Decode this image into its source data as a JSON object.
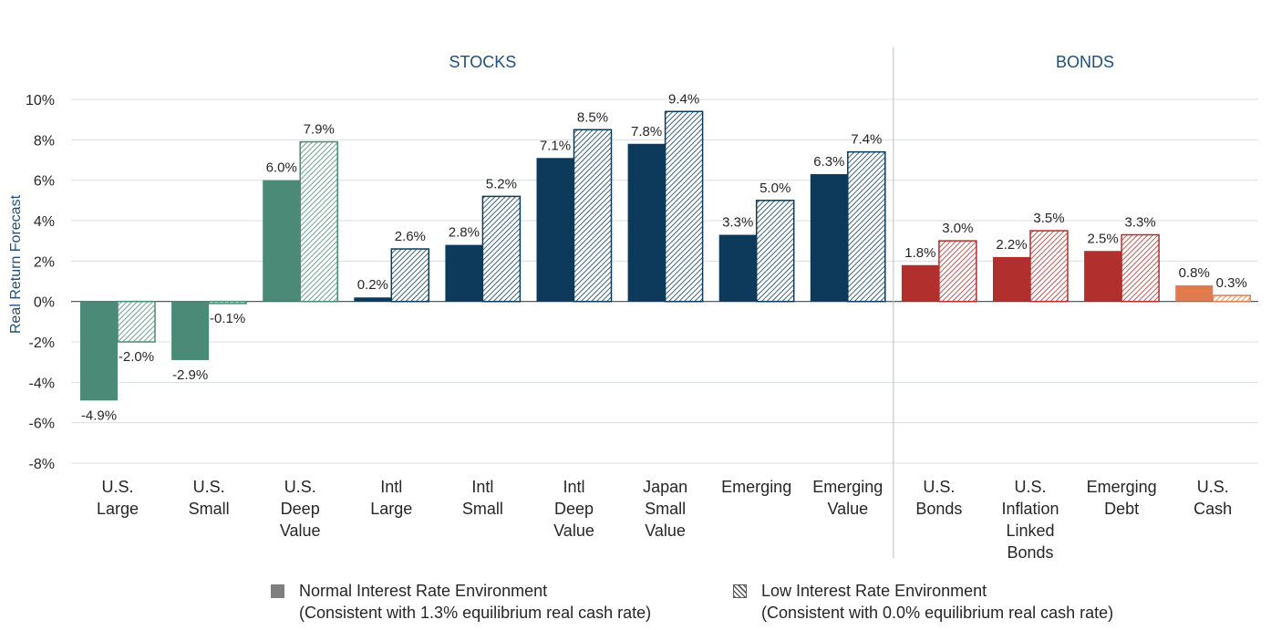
{
  "chart_data": {
    "type": "bar",
    "ylabel": "Real Return Forecast",
    "ylim": [
      -8,
      10
    ],
    "yticks": [
      -8,
      -6,
      -4,
      -2,
      0,
      2,
      4,
      6,
      8,
      10
    ],
    "ytick_labels": [
      "-8%",
      "-6%",
      "-4%",
      "-2%",
      "0%",
      "2%",
      "4%",
      "6%",
      "8%",
      "10%"
    ],
    "grid": true,
    "groups": [
      {
        "label": "STOCKS",
        "categories": [
          0,
          1,
          2,
          3,
          4,
          5,
          6,
          7,
          8
        ]
      },
      {
        "label": "BONDS",
        "categories": [
          9,
          10,
          11,
          12
        ]
      }
    ],
    "categories": [
      {
        "lines": [
          "U.S.",
          "Large"
        ],
        "color": "#4a8a76",
        "normal": -4.9,
        "low": -2.0,
        "normal_label": "-4.9%",
        "low_label": "-2.0%"
      },
      {
        "lines": [
          "U.S.",
          "Small"
        ],
        "color": "#4a8a76",
        "normal": -2.9,
        "low": -0.1,
        "normal_label": "-2.9%",
        "low_label": "-0.1%"
      },
      {
        "lines": [
          "U.S.",
          "Deep",
          "Value"
        ],
        "color": "#4a8a76",
        "normal": 6.0,
        "low": 7.9,
        "normal_label": "6.0%",
        "low_label": "7.9%"
      },
      {
        "lines": [
          "Intl",
          "Large"
        ],
        "color": "#0d3a5a",
        "normal": 0.2,
        "low": 2.6,
        "normal_label": "0.2%",
        "low_label": "2.6%"
      },
      {
        "lines": [
          "Intl",
          "Small"
        ],
        "color": "#0d3a5a",
        "normal": 2.8,
        "low": 5.2,
        "normal_label": "2.8%",
        "low_label": "5.2%"
      },
      {
        "lines": [
          "Intl",
          "Deep",
          "Value"
        ],
        "color": "#0d3a5a",
        "normal": 7.1,
        "low": 8.5,
        "normal_label": "7.1%",
        "low_label": "8.5%"
      },
      {
        "lines": [
          "Japan",
          "Small",
          "Value"
        ],
        "color": "#0d3a5a",
        "normal": 7.8,
        "low": 9.4,
        "normal_label": "7.8%",
        "low_label": "9.4%"
      },
      {
        "lines": [
          "Emerging"
        ],
        "color": "#0d3a5a",
        "normal": 3.3,
        "low": 5.0,
        "normal_label": "3.3%",
        "low_label": "5.0%"
      },
      {
        "lines": [
          "Emerging",
          "Value"
        ],
        "color": "#0d3a5a",
        "normal": 6.3,
        "low": 7.4,
        "normal_label": "6.3%",
        "low_label": "7.4%"
      },
      {
        "lines": [
          "U.S.",
          "Bonds"
        ],
        "color": "#b1302d",
        "normal": 1.8,
        "low": 3.0,
        "normal_label": "1.8%",
        "low_label": "3.0%"
      },
      {
        "lines": [
          "U.S.",
          "Inflation",
          "Linked",
          "Bonds"
        ],
        "color": "#b1302d",
        "normal": 2.2,
        "low": 3.5,
        "normal_label": "2.2%",
        "low_label": "3.5%"
      },
      {
        "lines": [
          "Emerging",
          "Debt"
        ],
        "color": "#b1302d",
        "normal": 2.5,
        "low": 3.3,
        "normal_label": "2.5%",
        "low_label": "3.3%"
      },
      {
        "lines": [
          "U.S.",
          "Cash"
        ],
        "color": "#e07b4f",
        "normal": 0.8,
        "low": 0.3,
        "normal_label": "0.8%",
        "low_label": "0.3%"
      }
    ],
    "series": [
      {
        "key": "normal",
        "name": "Normal Interest Rate Environment",
        "note": "(Consistent with 1.3% equilibrium real cash rate)",
        "fill": "solid",
        "legend_color": "#7f7f7f"
      },
      {
        "key": "low",
        "name": "Low Interest Rate Environment",
        "note": "(Consistent with 0.0% equilibrium real cash rate)",
        "fill": "hatched",
        "legend_color": "#595959"
      }
    ],
    "legend_position": "bottom"
  }
}
